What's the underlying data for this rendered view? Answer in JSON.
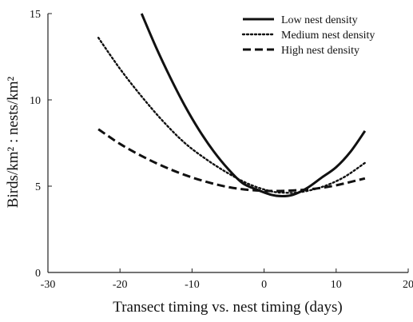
{
  "chart_data": {
    "type": "line",
    "title": "",
    "xlabel": "Transect timing vs. nest timing (days)",
    "ylabel": "Birds/km² : nests/km²",
    "xlim": [
      -30,
      20
    ],
    "ylim": [
      0,
      15
    ],
    "xticks": [
      -30,
      -20,
      -10,
      0,
      10,
      20
    ],
    "yticks": [
      0,
      5,
      10,
      15
    ],
    "grid": false,
    "legend_position": "top-right",
    "series": [
      {
        "name": "Low nest density",
        "line_style": "solid",
        "color": "#111111",
        "x": [
          -17,
          -15,
          -13,
          -11,
          -9,
          -7,
          -5,
          -3,
          -1,
          1,
          2.5,
          4,
          6,
          8,
          10,
          12,
          14
        ],
        "y": [
          15.0,
          13.05,
          11.28,
          9.66,
          8.24,
          7.02,
          6.0,
          5.18,
          4.8,
          4.5,
          4.42,
          4.5,
          4.9,
          5.5,
          6.1,
          7.0,
          8.2
        ]
      },
      {
        "name": "Medium nest density",
        "line_style": "dotted",
        "color": "#111111",
        "x": [
          -23,
          -20,
          -17,
          -14,
          -11,
          -8,
          -5,
          -2,
          1,
          3,
          5,
          8,
          11,
          14
        ],
        "y": [
          13.6,
          11.8,
          10.2,
          8.75,
          7.5,
          6.55,
          5.75,
          5.1,
          4.7,
          4.62,
          4.65,
          4.95,
          5.5,
          6.35
        ]
      },
      {
        "name": "High nest density",
        "line_style": "dashed",
        "color": "#111111",
        "x": [
          -23,
          -20,
          -17,
          -14,
          -11,
          -8,
          -5,
          -2,
          1,
          4,
          7,
          10,
          14
        ],
        "y": [
          8.3,
          7.45,
          6.75,
          6.15,
          5.65,
          5.25,
          4.95,
          4.78,
          4.72,
          4.75,
          4.85,
          5.05,
          5.45
        ]
      }
    ]
  }
}
